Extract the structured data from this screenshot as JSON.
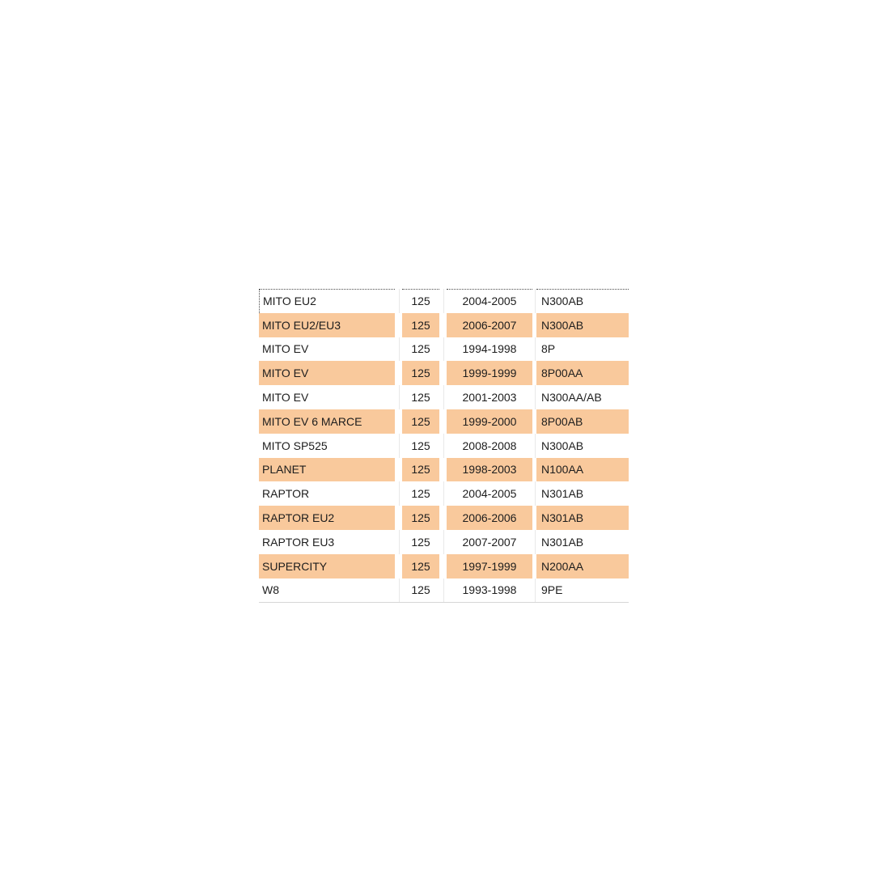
{
  "colors": {
    "highlight": "#F9C99C",
    "text": "#1D1D1D",
    "dotted_selection_border": "#4B4B4B",
    "gridline": "#E8E8E8",
    "bottom_border": "#D6D6D6",
    "background": "#FFFFFF"
  },
  "table": {
    "columns": [
      {
        "key": "model",
        "align": "left"
      },
      {
        "key": "displacement",
        "align": "center"
      },
      {
        "key": "years",
        "align": "center"
      },
      {
        "key": "code",
        "align": "left"
      }
    ],
    "rows": [
      {
        "model": "MITO EU2",
        "displacement": "125",
        "years": "2004-2005",
        "code": "N300AB",
        "highlight": false
      },
      {
        "model": "MITO EU2/EU3",
        "displacement": "125",
        "years": "2006-2007",
        "code": "N300AB",
        "highlight": true
      },
      {
        "model": "MITO EV",
        "displacement": "125",
        "years": "1994-1998",
        "code": "8P",
        "highlight": false
      },
      {
        "model": "MITO EV",
        "displacement": "125",
        "years": "1999-1999",
        "code": "8P00AA",
        "highlight": true
      },
      {
        "model": "MITO EV",
        "displacement": "125",
        "years": "2001-2003",
        "code": "N300AA/AB",
        "highlight": false
      },
      {
        "model": "MITO EV 6 MARCE",
        "displacement": "125",
        "years": "1999-2000",
        "code": "8P00AB",
        "highlight": true
      },
      {
        "model": "MITO SP525",
        "displacement": "125",
        "years": "2008-2008",
        "code": "N300AB",
        "highlight": false
      },
      {
        "model": "PLANET",
        "displacement": "125",
        "years": "1998-2003",
        "code": "N100AA",
        "highlight": true
      },
      {
        "model": "RAPTOR",
        "displacement": "125",
        "years": "2004-2005",
        "code": "N301AB",
        "highlight": false
      },
      {
        "model": "RAPTOR EU2",
        "displacement": "125",
        "years": "2006-2006",
        "code": "N301AB",
        "highlight": true
      },
      {
        "model": "RAPTOR EU3",
        "displacement": "125",
        "years": "2007-2007",
        "code": "N301AB",
        "highlight": false
      },
      {
        "model": "SUPERCITY",
        "displacement": "125",
        "years": "1997-1999",
        "code": "N200AA",
        "highlight": true
      },
      {
        "model": "W8",
        "displacement": "125",
        "years": "1993-1998",
        "code": "9PE",
        "highlight": false
      }
    ]
  }
}
